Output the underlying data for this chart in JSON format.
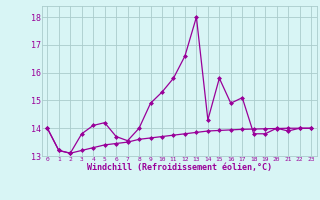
{
  "xlabel": "Windchill (Refroidissement éolien,°C)",
  "x_values": [
    0,
    1,
    2,
    3,
    4,
    5,
    6,
    7,
    8,
    9,
    10,
    11,
    12,
    13,
    14,
    15,
    16,
    17,
    18,
    19,
    20,
    21,
    22,
    23
  ],
  "y_line1": [
    14.0,
    13.2,
    13.1,
    13.8,
    14.1,
    14.2,
    13.7,
    13.55,
    14.0,
    14.9,
    15.3,
    15.8,
    16.6,
    18.0,
    14.3,
    15.8,
    14.9,
    15.1,
    13.8,
    13.8,
    14.0,
    13.9,
    14.0,
    14.0
  ],
  "y_line2": [
    14.0,
    13.2,
    13.1,
    13.2,
    13.3,
    13.4,
    13.45,
    13.5,
    13.6,
    13.65,
    13.7,
    13.75,
    13.8,
    13.85,
    13.9,
    13.92,
    13.94,
    13.96,
    13.97,
    13.98,
    13.99,
    14.0,
    14.0,
    14.0
  ],
  "line_color": "#990099",
  "bg_color": "#d8f5f5",
  "grid_color": "#aacccc",
  "ylim": [
    13.0,
    18.4
  ],
  "yticks": [
    13,
    14,
    15,
    16,
    17,
    18
  ],
  "marker": "D",
  "markersize": 2.0,
  "linewidth": 0.9
}
